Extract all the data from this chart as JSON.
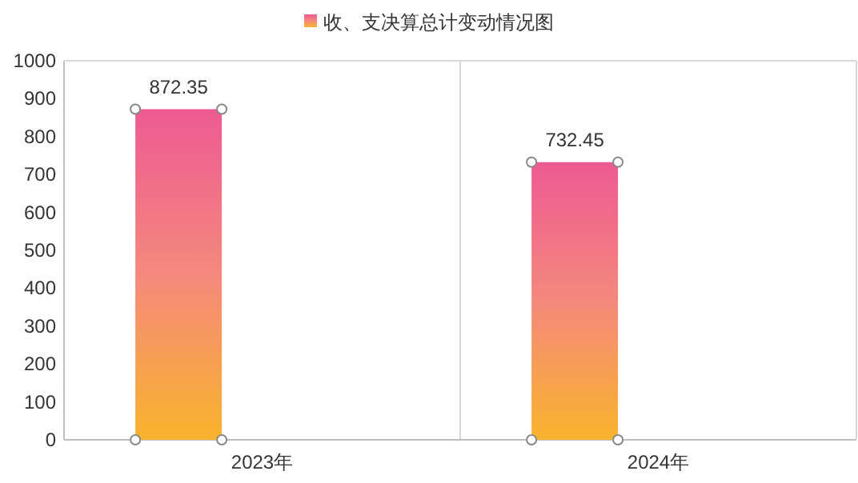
{
  "chart_data": {
    "type": "bar",
    "categories": [
      "2023年",
      "2024年"
    ],
    "series": [
      {
        "name": "收、支决算总计变动情况图",
        "color": "#f4897c",
        "values": [
          872.35,
          732.45
        ]
      }
    ],
    "ylim": [
      0,
      1000
    ],
    "yticks": [
      0,
      100,
      200,
      300,
      400,
      500,
      600,
      700,
      800,
      900,
      1000
    ],
    "data_labels": true,
    "legend": "top",
    "grid": "x"
  }
}
